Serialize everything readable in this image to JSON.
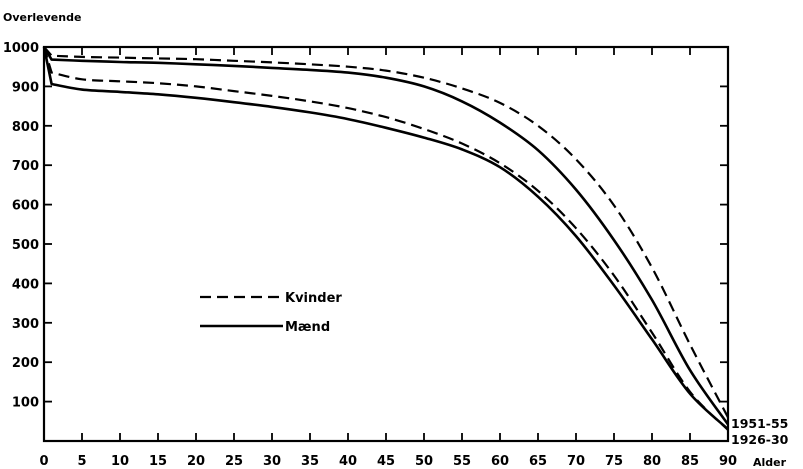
{
  "chart_data": {
    "type": "line",
    "title": "",
    "ylabel": "Overlevende",
    "xlabel": "Alder",
    "xlim": [
      0,
      90
    ],
    "ylim": [
      0,
      1000
    ],
    "x_ticks": [
      0,
      5,
      10,
      15,
      20,
      25,
      30,
      35,
      40,
      45,
      50,
      55,
      60,
      65,
      70,
      75,
      80,
      85,
      90
    ],
    "y_ticks": [
      100,
      200,
      300,
      400,
      500,
      600,
      700,
      800,
      900,
      1000
    ],
    "grid": false,
    "legend": {
      "position": "middle-left",
      "entries": [
        {
          "label": "Kvinder",
          "style": "dashed"
        },
        {
          "label": "Mænd",
          "style": "solid"
        }
      ]
    },
    "period_labels": [
      "1951-55",
      "1926-30"
    ],
    "series": [
      {
        "sex": "Kvinder",
        "period": "1951-55",
        "style": "dashed",
        "points": [
          [
            0,
            1000
          ],
          [
            1,
            978
          ],
          [
            5,
            975
          ],
          [
            10,
            973
          ],
          [
            15,
            971
          ],
          [
            20,
            969
          ],
          [
            25,
            965
          ],
          [
            30,
            961
          ],
          [
            35,
            956
          ],
          [
            40,
            950
          ],
          [
            45,
            940
          ],
          [
            50,
            922
          ],
          [
            55,
            895
          ],
          [
            60,
            858
          ],
          [
            65,
            800
          ],
          [
            70,
            715
          ],
          [
            75,
            598
          ],
          [
            80,
            440
          ],
          [
            85,
            245
          ],
          [
            90,
            60
          ]
        ]
      },
      {
        "sex": "Mænd",
        "period": "1951-55",
        "style": "solid",
        "points": [
          [
            0,
            1000
          ],
          [
            1,
            968
          ],
          [
            5,
            965
          ],
          [
            10,
            962
          ],
          [
            15,
            960
          ],
          [
            20,
            956
          ],
          [
            25,
            952
          ],
          [
            30,
            947
          ],
          [
            35,
            942
          ],
          [
            40,
            935
          ],
          [
            45,
            922
          ],
          [
            50,
            900
          ],
          [
            55,
            862
          ],
          [
            60,
            808
          ],
          [
            65,
            738
          ],
          [
            70,
            638
          ],
          [
            75,
            510
          ],
          [
            80,
            358
          ],
          [
            85,
            180
          ],
          [
            90,
            42
          ]
        ]
      },
      {
        "sex": "Kvinder",
        "period": "1926-30",
        "style": "dashed",
        "points": [
          [
            0,
            1000
          ],
          [
            1,
            935
          ],
          [
            5,
            918
          ],
          [
            10,
            913
          ],
          [
            15,
            908
          ],
          [
            20,
            900
          ],
          [
            25,
            888
          ],
          [
            30,
            876
          ],
          [
            35,
            862
          ],
          [
            40,
            845
          ],
          [
            45,
            822
          ],
          [
            50,
            792
          ],
          [
            55,
            755
          ],
          [
            60,
            705
          ],
          [
            65,
            635
          ],
          [
            70,
            540
          ],
          [
            75,
            420
          ],
          [
            80,
            275
          ],
          [
            85,
            125
          ],
          [
            90,
            28
          ]
        ]
      },
      {
        "sex": "Mænd",
        "period": "1926-30",
        "style": "solid",
        "points": [
          [
            0,
            1000
          ],
          [
            1,
            906
          ],
          [
            5,
            892
          ],
          [
            10,
            886
          ],
          [
            15,
            880
          ],
          [
            20,
            871
          ],
          [
            25,
            860
          ],
          [
            30,
            848
          ],
          [
            35,
            834
          ],
          [
            40,
            817
          ],
          [
            45,
            795
          ],
          [
            50,
            770
          ],
          [
            55,
            740
          ],
          [
            60,
            695
          ],
          [
            65,
            620
          ],
          [
            70,
            520
          ],
          [
            75,
            395
          ],
          [
            80,
            258
          ],
          [
            85,
            120
          ],
          [
            90,
            30
          ]
        ]
      }
    ]
  }
}
